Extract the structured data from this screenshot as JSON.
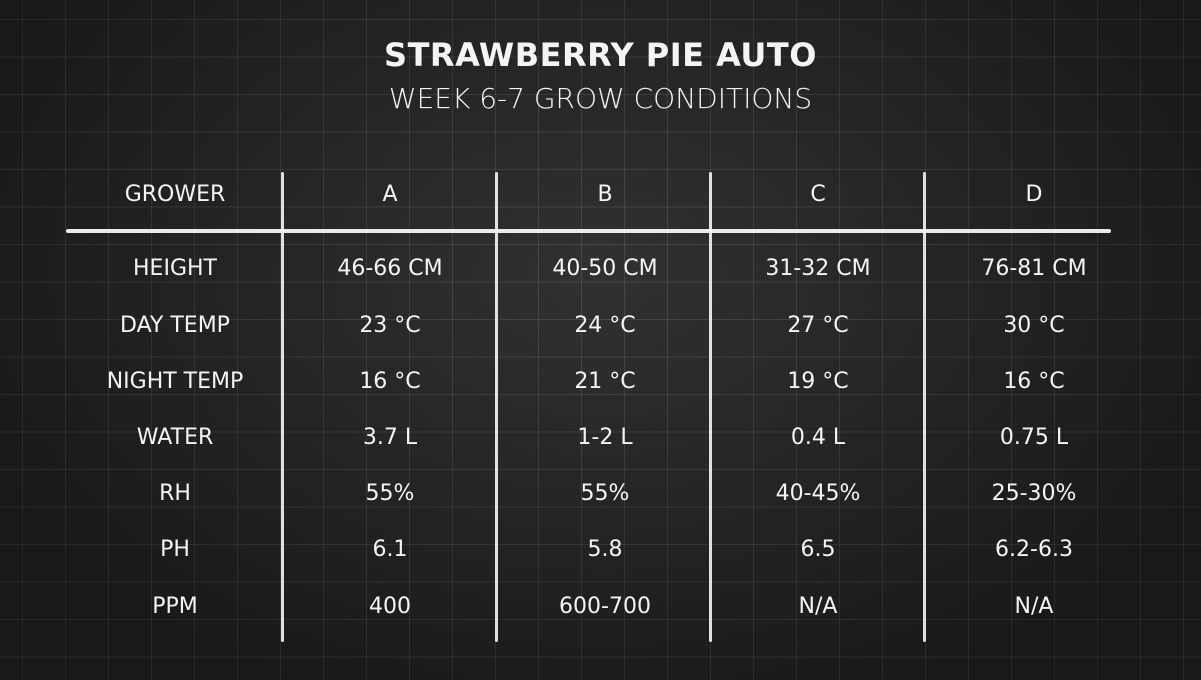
{
  "title": "STRAWBERRY PIE AUTO",
  "subtitle": "WEEK 6-7 GROW CONDITIONS",
  "table": {
    "header": [
      "GROWER",
      "A",
      "B",
      "C",
      "D"
    ],
    "rows": [
      [
        "HEIGHT",
        "46-66 CM",
        "40-50 CM",
        "31-32 CM",
        "76-81 CM"
      ],
      [
        "DAY TEMP",
        "23 °C",
        "24 °C",
        "27 °C",
        "30 °C"
      ],
      [
        "NIGHT TEMP",
        "16 °C",
        "21 °C",
        "19 °C",
        "16 °C"
      ],
      [
        "WATER",
        "3.7 L",
        "1-2 L",
        "0.4 L",
        "0.75 L"
      ],
      [
        "RH",
        "55%",
        "55%",
        "40-45%",
        "25-30%"
      ],
      [
        "PH",
        "6.1",
        "5.8",
        "6.5",
        "6.2-6.3"
      ],
      [
        "PPM",
        "400",
        "600-700",
        "N/A",
        "N/A"
      ]
    ]
  }
}
